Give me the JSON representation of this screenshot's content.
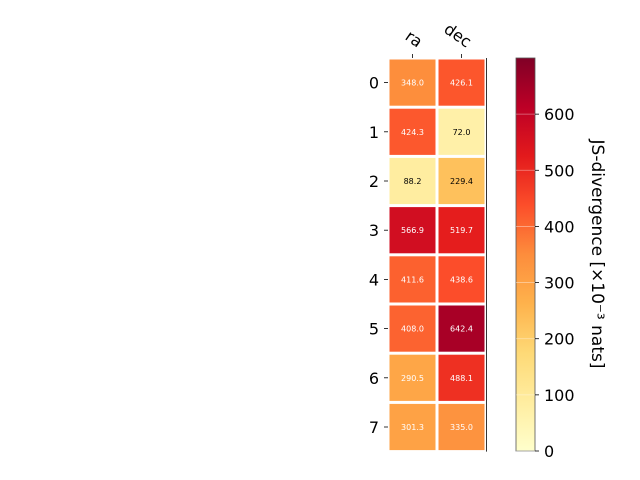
{
  "chart_data": {
    "type": "heatmap",
    "columns": [
      "ra",
      "dec"
    ],
    "rows": [
      "0",
      "1",
      "2",
      "3",
      "4",
      "5",
      "6",
      "7"
    ],
    "values": [
      [
        348.0,
        426.1
      ],
      [
        424.3,
        72.0
      ],
      [
        88.2,
        229.4
      ],
      [
        566.9,
        519.7
      ],
      [
        411.6,
        438.6
      ],
      [
        408.0,
        642.4
      ],
      [
        290.5,
        488.1
      ],
      [
        301.3,
        335.0
      ]
    ],
    "colorbar": {
      "label": "JS-divergence [×10⁻³ nats]",
      "range": [
        0,
        700
      ],
      "ticks": [
        "0",
        "100",
        "200",
        "300",
        "400",
        "500",
        "600"
      ],
      "colormap": "YlOrRd"
    },
    "grid": false,
    "legend": "colorbar-right"
  }
}
